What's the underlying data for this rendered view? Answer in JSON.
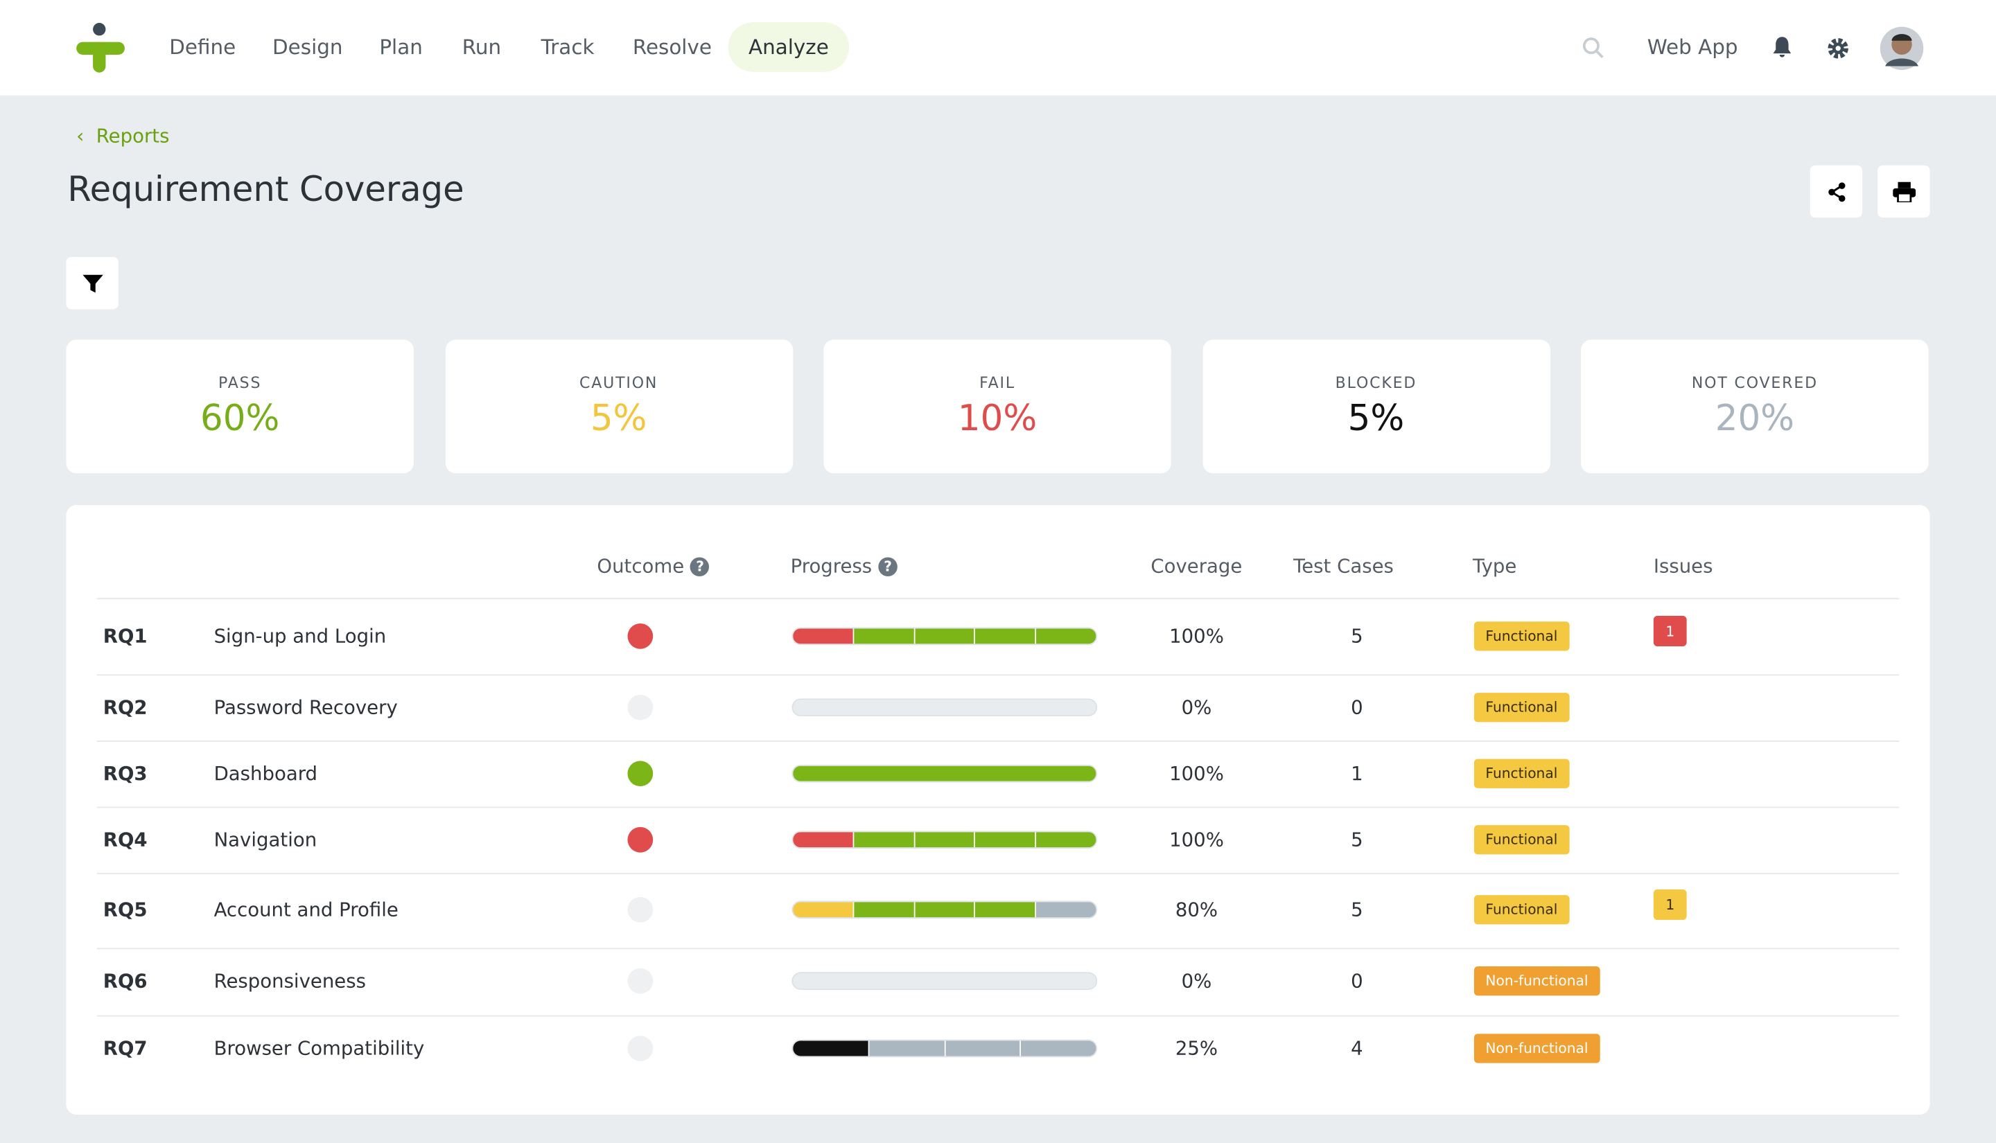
{
  "nav": {
    "items": [
      "Define",
      "Design",
      "Plan",
      "Run",
      "Track",
      "Resolve",
      "Analyze"
    ],
    "active": 6,
    "app": "Web App"
  },
  "breadcrumb": "Reports",
  "title": "Requirement Coverage",
  "summary": [
    {
      "label": "PASS",
      "value": "60%",
      "color": "#78ad1a"
    },
    {
      "label": "CAUTION",
      "value": "5%",
      "color": "#f2c53d"
    },
    {
      "label": "FAIL",
      "value": "10%",
      "color": "#e04b4b"
    },
    {
      "label": "BLOCKED",
      "value": "5%",
      "color": "#111111"
    },
    {
      "label": "NOT COVERED",
      "value": "20%",
      "color": "#a9b4be"
    }
  ],
  "table": {
    "headers": [
      "Outcome",
      "Progress",
      "Coverage",
      "Test Cases",
      "Type",
      "Issues"
    ],
    "rows": [
      {
        "id": "RQ1",
        "name": "Sign-up and Login",
        "outcome": "#e04b4b",
        "progress": [
          "#e04b4b",
          "#7cb518",
          "#7cb518",
          "#7cb518",
          "#7cb518"
        ],
        "coverage": "100%",
        "cases": "5",
        "type": "Functional",
        "type_color": "#f5c842",
        "issues": "1",
        "issue_color": "#e04b4b"
      },
      {
        "id": "RQ2",
        "name": "Password Recovery",
        "outcome": null,
        "progress": [],
        "coverage": "0%",
        "cases": "0",
        "type": "Functional",
        "type_color": "#f5c842",
        "issues": null,
        "issue_color": null
      },
      {
        "id": "RQ3",
        "name": "Dashboard",
        "outcome": "#7cb518",
        "progress": [
          "#7cb518"
        ],
        "coverage": "100%",
        "cases": "1",
        "type": "Functional",
        "type_color": "#f5c842",
        "issues": null,
        "issue_color": null
      },
      {
        "id": "RQ4",
        "name": "Navigation",
        "outcome": "#e04b4b",
        "progress": [
          "#e04b4b",
          "#7cb518",
          "#7cb518",
          "#7cb518",
          "#7cb518"
        ],
        "coverage": "100%",
        "cases": "5",
        "type": "Functional",
        "type_color": "#f5c842",
        "issues": null,
        "issue_color": null
      },
      {
        "id": "RQ5",
        "name": "Account and Profile",
        "outcome": null,
        "progress": [
          "#f5c842",
          "#7cb518",
          "#7cb518",
          "#7cb518",
          "#aab6c0"
        ],
        "coverage": "80%",
        "cases": "5",
        "type": "Functional",
        "type_color": "#f5c842",
        "issues": "1",
        "issue_color": "#f5c842"
      },
      {
        "id": "RQ6",
        "name": "Responsiveness",
        "outcome": null,
        "progress": [],
        "coverage": "0%",
        "cases": "0",
        "type": "Non-functional",
        "type_color": "#f0a030",
        "issues": null,
        "issue_color": null
      },
      {
        "id": "RQ7",
        "name": "Browser Compatibility",
        "outcome": null,
        "progress": [
          "#111111",
          "#aab6c0",
          "#aab6c0",
          "#aab6c0"
        ],
        "coverage": "25%",
        "cases": "4",
        "type": "Non-functional",
        "type_color": "#f0a030",
        "issues": null,
        "issue_color": null
      }
    ]
  }
}
